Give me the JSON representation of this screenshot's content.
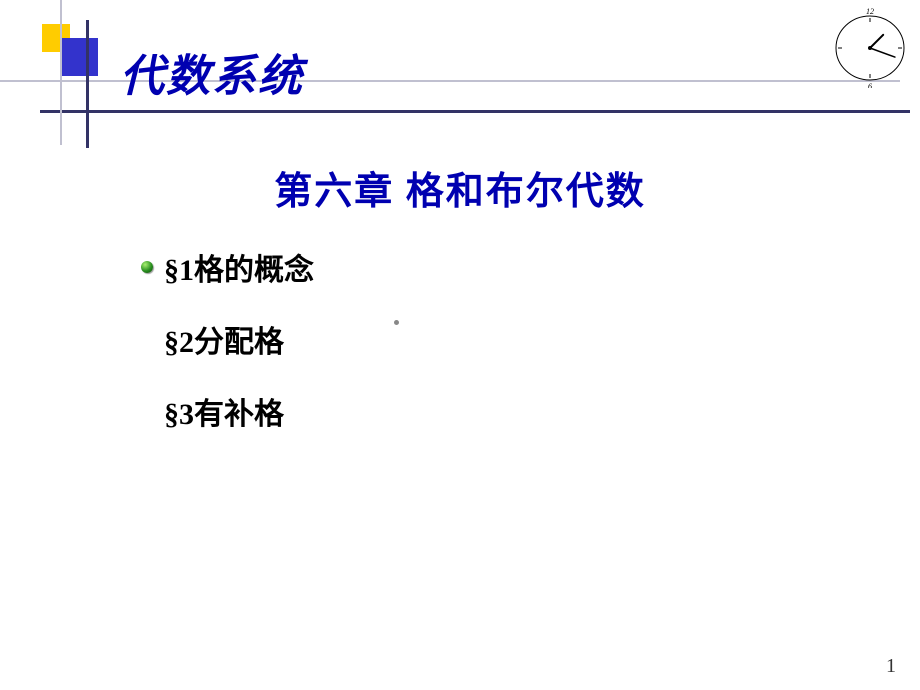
{
  "colors": {
    "title_blue": "#0000b0",
    "deco_yellow": "#ffcc00",
    "deco_blue": "#3333cc",
    "line_light": "#c0c0d0",
    "line_dark": "#333366",
    "bullet_green_light": "#a8f070",
    "bullet_green_dark": "#0b4008",
    "text_black": "#000000",
    "background": "#ffffff"
  },
  "typography": {
    "main_title_size": 44,
    "chapter_title_size": 38,
    "toc_item_size": 30,
    "page_num_size": 20
  },
  "main_title": "代数系统",
  "chapter_title": "第六章  格和布尔代数",
  "toc": {
    "items": [
      {
        "label": "§1格的概念",
        "has_bullet": true
      },
      {
        "label": "§2分配格",
        "has_bullet": false
      },
      {
        "label": "§3有补格",
        "has_bullet": false
      }
    ]
  },
  "clock": {
    "top_label": "12",
    "bottom_label": "6",
    "hour_angle_deg": 45,
    "minute_angle_deg": 110,
    "radius": 34
  },
  "page_number": "1"
}
